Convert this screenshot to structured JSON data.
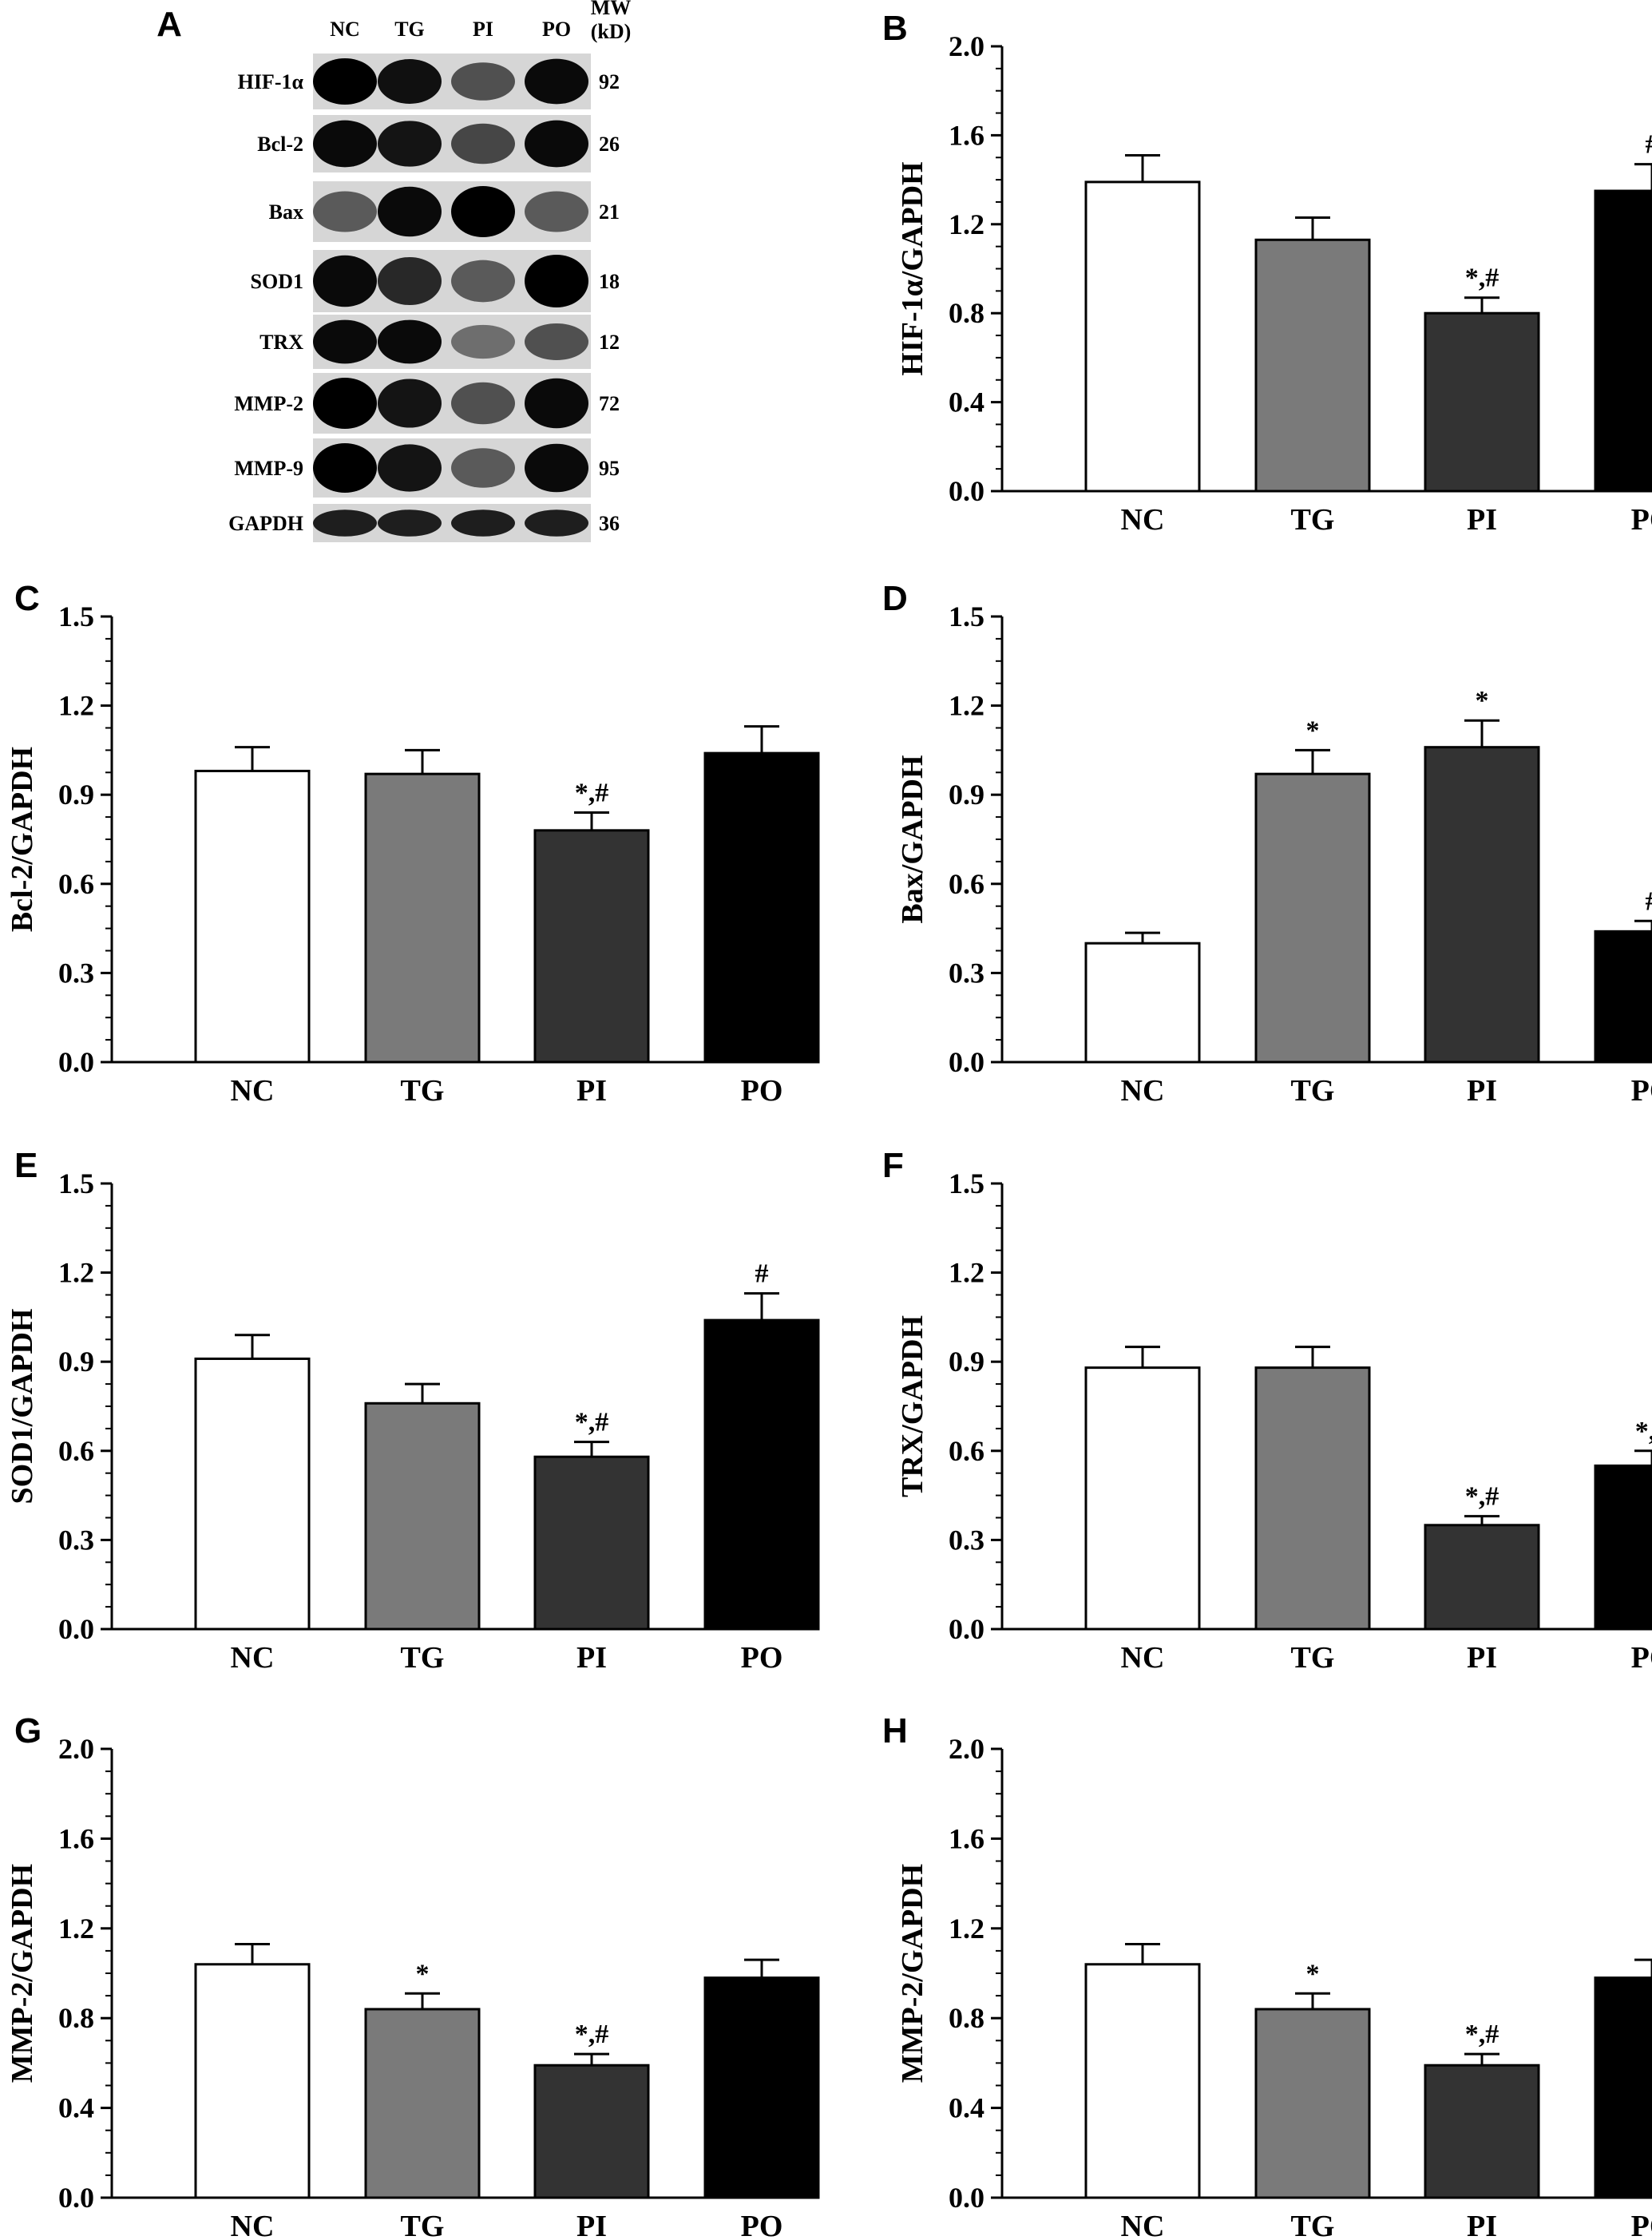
{
  "blot": {
    "panel": "A",
    "lanes": [
      "NC",
      "TG",
      "PI",
      "PO"
    ],
    "mw_header": [
      "MW",
      "(kD)"
    ],
    "rows": [
      {
        "protein": "HIF-1α",
        "mw": "92",
        "intensity": [
          1.0,
          0.92,
          0.6,
          0.95
        ]
      },
      {
        "protein": "Bcl-2",
        "mw": "26",
        "intensity": [
          0.95,
          0.9,
          0.65,
          0.95
        ]
      },
      {
        "protein": "Bax",
        "mw": "21",
        "intensity": [
          0.55,
          0.95,
          1.0,
          0.55
        ]
      },
      {
        "protein": "SOD1",
        "mw": "18",
        "intensity": [
          0.95,
          0.8,
          0.55,
          1.0
        ]
      },
      {
        "protein": "TRX",
        "mw": "12",
        "intensity": [
          0.95,
          0.95,
          0.45,
          0.6
        ]
      },
      {
        "protein": "MMP-2",
        "mw": "72",
        "intensity": [
          1.0,
          0.9,
          0.6,
          0.95
        ]
      },
      {
        "protein": "MMP-9",
        "mw": "95",
        "intensity": [
          1.0,
          0.9,
          0.55,
          0.95
        ]
      },
      {
        "protein": "GAPDH",
        "mw": "36",
        "intensity": [
          0.85,
          0.85,
          0.85,
          0.85
        ]
      }
    ]
  },
  "chart_data": [
    {
      "panel": "B",
      "type": "bar",
      "categories": [
        "NC",
        "TG",
        "PI",
        "PO"
      ],
      "values": [
        1.39,
        1.13,
        0.8,
        1.35
      ],
      "errors": [
        0.12,
        0.1,
        0.07,
        0.12
      ],
      "annotations": [
        "",
        "",
        "*,#",
        "#"
      ],
      "ylabel": "HIF-1α/GAPDH",
      "ylim": [
        0,
        2.0
      ],
      "yticks": [
        "0.0",
        "0.4",
        "0.8",
        "1.2",
        "1.6",
        "2.0"
      ],
      "bar_colors": [
        "#ffffff",
        "#7a7a7a",
        "#333333",
        "#000000"
      ]
    },
    {
      "panel": "C",
      "type": "bar",
      "categories": [
        "NC",
        "TG",
        "PI",
        "PO"
      ],
      "values": [
        0.98,
        0.97,
        0.78,
        1.04
      ],
      "errors": [
        0.08,
        0.08,
        0.06,
        0.09
      ],
      "annotations": [
        "",
        "",
        "*,#",
        ""
      ],
      "ylabel": "Bcl-2/GAPDH",
      "ylim": [
        0,
        1.5
      ],
      "yticks": [
        "0.0",
        "0.3",
        "0.6",
        "0.9",
        "1.2",
        "1.5"
      ],
      "bar_colors": [
        "#ffffff",
        "#7a7a7a",
        "#333333",
        "#000000"
      ]
    },
    {
      "panel": "D",
      "type": "bar",
      "categories": [
        "NC",
        "TG",
        "PI",
        "PO"
      ],
      "values": [
        0.4,
        0.97,
        1.06,
        0.44
      ],
      "errors": [
        0.035,
        0.08,
        0.09,
        0.035
      ],
      "annotations": [
        "",
        "*",
        "*",
        "#"
      ],
      "ylabel": "Bax/GAPDH",
      "ylim": [
        0,
        1.5
      ],
      "yticks": [
        "0.0",
        "0.3",
        "0.6",
        "0.9",
        "1.2",
        "1.5"
      ],
      "bar_colors": [
        "#ffffff",
        "#7a7a7a",
        "#333333",
        "#000000"
      ]
    },
    {
      "panel": "E",
      "type": "bar",
      "categories": [
        "NC",
        "TG",
        "PI",
        "PO"
      ],
      "values": [
        0.91,
        0.76,
        0.58,
        1.04
      ],
      "errors": [
        0.08,
        0.065,
        0.05,
        0.09
      ],
      "annotations": [
        "",
        "",
        "*,#",
        "#"
      ],
      "ylabel": "SOD1/GAPDH",
      "ylim": [
        0,
        1.5
      ],
      "yticks": [
        "0.0",
        "0.3",
        "0.6",
        "0.9",
        "1.2",
        "1.5"
      ],
      "bar_colors": [
        "#ffffff",
        "#7a7a7a",
        "#333333",
        "#000000"
      ]
    },
    {
      "panel": "F",
      "type": "bar",
      "categories": [
        "NC",
        "TG",
        "PI",
        "PO"
      ],
      "values": [
        0.88,
        0.88,
        0.35,
        0.55
      ],
      "errors": [
        0.07,
        0.07,
        0.03,
        0.05
      ],
      "annotations": [
        "",
        "",
        "*,#",
        "*,#"
      ],
      "ylabel": "TRX/GAPDH",
      "ylim": [
        0,
        1.5
      ],
      "yticks": [
        "0.0",
        "0.3",
        "0.6",
        "0.9",
        "1.2",
        "1.5"
      ],
      "bar_colors": [
        "#ffffff",
        "#7a7a7a",
        "#333333",
        "#000000"
      ]
    },
    {
      "panel": "G",
      "type": "bar",
      "categories": [
        "NC",
        "TG",
        "PI",
        "PO"
      ],
      "values": [
        1.04,
        0.84,
        0.59,
        0.98
      ],
      "errors": [
        0.09,
        0.07,
        0.05,
        0.08
      ],
      "annotations": [
        "",
        "*",
        "*,#",
        ""
      ],
      "ylabel": "MMP-2/GAPDH",
      "ylim": [
        0,
        2.0
      ],
      "yticks": [
        "0.0",
        "0.4",
        "0.8",
        "1.2",
        "1.6",
        "2.0"
      ],
      "bar_colors": [
        "#ffffff",
        "#7a7a7a",
        "#333333",
        "#000000"
      ]
    },
    {
      "panel": "H",
      "type": "bar",
      "categories": [
        "NC",
        "TG",
        "PI",
        "PO"
      ],
      "values": [
        1.04,
        0.84,
        0.59,
        0.98
      ],
      "errors": [
        0.09,
        0.07,
        0.05,
        0.08
      ],
      "annotations": [
        "",
        "*",
        "*,#",
        ""
      ],
      "ylabel": "MMP-2/GAPDH",
      "ylim": [
        0,
        2.0
      ],
      "yticks": [
        "0.0",
        "0.4",
        "0.8",
        "1.2",
        "1.6",
        "2.0"
      ],
      "bar_colors": [
        "#ffffff",
        "#7a7a7a",
        "#333333",
        "#000000"
      ]
    }
  ]
}
